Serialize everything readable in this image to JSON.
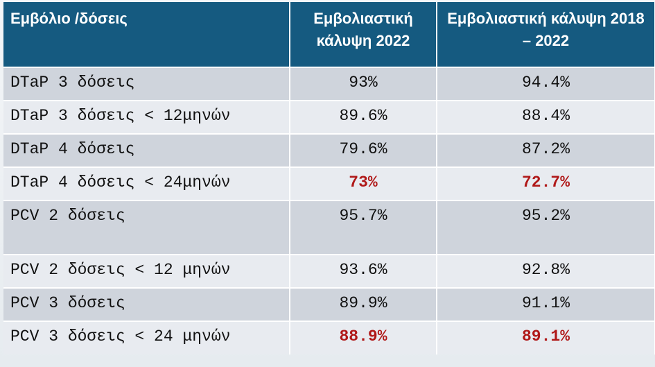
{
  "table": {
    "header": [
      "Εμβόλιο  /δόσεις",
      "Εμβολιαστική κάλυψη 2022",
      "Εμβολιαστική κάλυψη 2018 – 2022"
    ],
    "rows": [
      [
        "DTaP 3 δόσεις",
        "93%",
        "94.4%"
      ],
      [
        "DTaP 3 δόσεις < 12μηνών",
        "89.6%",
        "88.4%"
      ],
      [
        "DTaP 4 δόσεις",
        "79.6%",
        "87.2%"
      ],
      [
        "DTaP 4 δόσεις < 24μηνών",
        "73%",
        "72.7%"
      ],
      [
        "PCV 2 δόσεις",
        "95.7%",
        "95.2%"
      ],
      [
        "PCV 2 δόσεις < 12 μηνών",
        "93.6%",
        "92.8%"
      ],
      [
        "PCV 3 δόσεις",
        "89.9%",
        "91.1%"
      ],
      [
        "PCV 3 δόσεις < 24 μηνών",
        "88.9%",
        "89.1%"
      ]
    ]
  }
}
